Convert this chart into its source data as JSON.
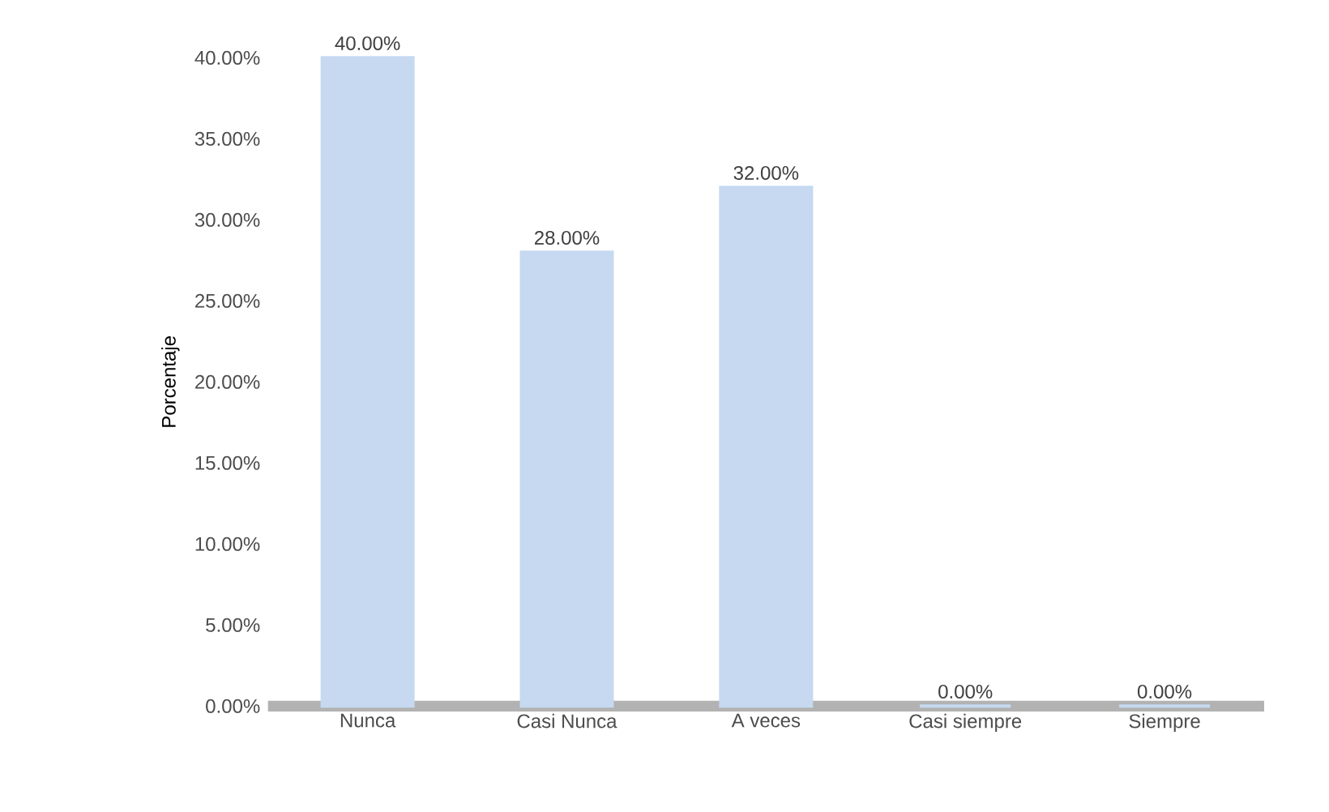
{
  "chart_data": {
    "type": "bar",
    "ylabel": "Porcentaje",
    "categories": [
      "Nunca",
      "Casi Nunca",
      "A veces",
      "Casi siempre",
      "Siempre"
    ],
    "values": [
      40,
      28,
      32,
      0,
      0
    ],
    "color": "#c6d9f1",
    "value_labels": [
      "40.00%",
      "28.00%",
      "32.00%",
      "0.00%",
      "0.00%"
    ],
    "ylim": [
      0,
      40
    ],
    "yticks": [
      {
        "value": 0,
        "label": "0.00%"
      },
      {
        "value": 5,
        "label": "5.00%"
      },
      {
        "value": 10,
        "label": "10.00%"
      },
      {
        "value": 15,
        "label": "15.00%"
      },
      {
        "value": 20,
        "label": "20.00%"
      },
      {
        "value": 25,
        "label": "25.00%"
      },
      {
        "value": 30,
        "label": "30.00%"
      },
      {
        "value": 35,
        "label": "35.00%"
      },
      {
        "value": 40,
        "label": "40.00%"
      }
    ],
    "grid": false
  }
}
